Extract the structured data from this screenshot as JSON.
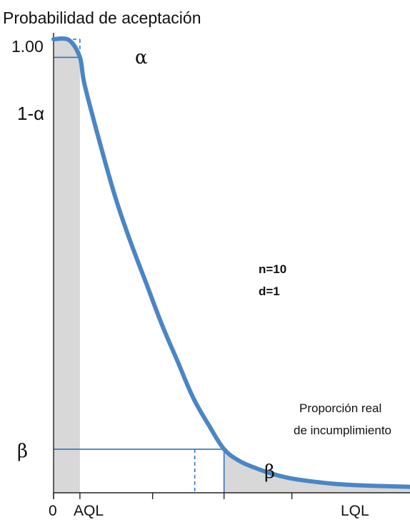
{
  "chart_data": {
    "type": "line",
    "title": "",
    "ylabel": "Probabilidad de aceptación",
    "xlabel": "Proporción real de incumplimiento",
    "xlabel_lines": [
      "Proporción real",
      "de incumplimiento"
    ],
    "x_tick_labels": [
      "0",
      "AQL",
      "LQL"
    ],
    "y_tick_labels": [
      "1.00",
      "1-α",
      "β"
    ],
    "ylim": [
      0,
      1
    ],
    "grid": false,
    "legend": "none",
    "parameters": {
      "n": "n=10",
      "d": "d=1"
    },
    "risk_labels": {
      "producer": "α",
      "consumer": "β"
    },
    "key_points": {
      "AQL": {
        "x": 0.017,
        "y": 0.96
      },
      "LQL": {
        "x": 0.11,
        "y": 0.096
      }
    },
    "series": [
      {
        "x": [
          0,
          0.01,
          0.017,
          0.02,
          0.03,
          0.04,
          0.05,
          0.06,
          0.07,
          0.08,
          0.09,
          0.1,
          0.11,
          0.12,
          0.13,
          0.14,
          0.15,
          0.16,
          0.18,
          0.2,
          0.23
        ],
        "y": [
          1.0,
          0.998,
          0.96,
          0.9,
          0.77,
          0.65,
          0.55,
          0.46,
          0.37,
          0.29,
          0.21,
          0.15,
          0.096,
          0.07,
          0.055,
          0.043,
          0.034,
          0.028,
          0.02,
          0.016,
          0.013
        ]
      }
    ],
    "colors": {
      "curve": "#4a86c5",
      "lines": "#2f73bd",
      "shade": "#d8d8d9",
      "axis": "#222222"
    }
  }
}
